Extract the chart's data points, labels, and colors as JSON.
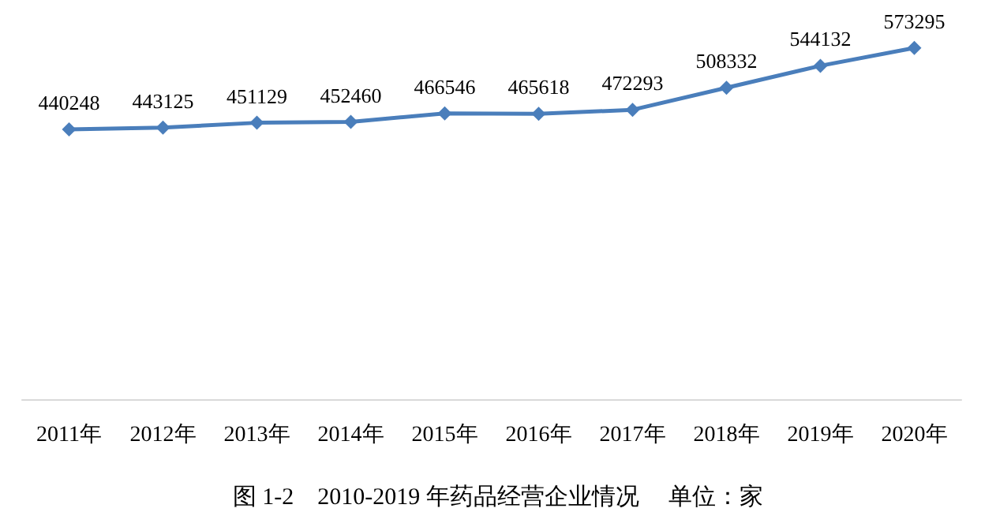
{
  "chart_data": {
    "type": "line",
    "title": "图 1-2　2010-2019 年药品经营企业情况　 单位：家",
    "categories": [
      "2011年",
      "2012年",
      "2013年",
      "2014年",
      "2015年",
      "2016年",
      "2017年",
      "2018年",
      "2019年",
      "2020年"
    ],
    "series": [
      {
        "color": "#4a7ebb",
        "values": [
          440248,
          443125,
          451129,
          452460,
          466546,
          465618,
          472293,
          508332,
          544132,
          573295
        ]
      }
    ],
    "data_labels": true,
    "marker": "diamond",
    "tick_labels": "x"
  }
}
